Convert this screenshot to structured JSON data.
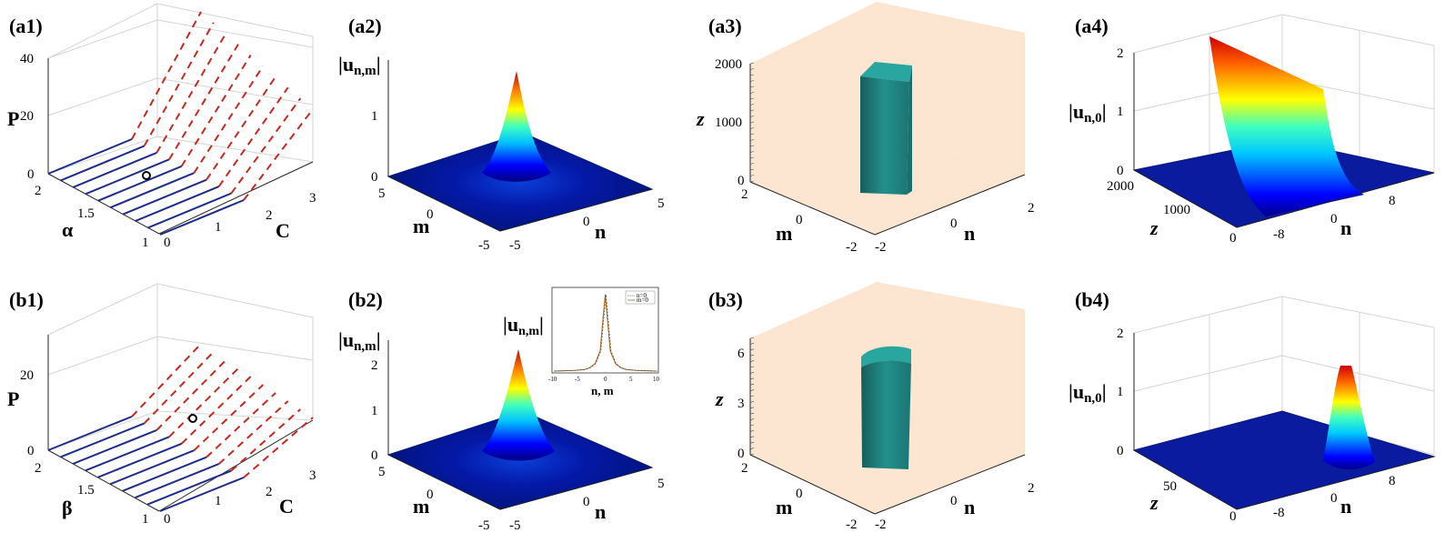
{
  "chart_data": [
    {
      "panel": "(a1)",
      "type": "line-3d",
      "zlabel": "P",
      "ylabel": "α",
      "xlabel": "C",
      "z_ticks": [
        "0",
        "20",
        "40"
      ],
      "y_ticks": [
        "1",
        "1.5",
        "2"
      ],
      "x_ticks": [
        "0",
        "1",
        "2",
        "3"
      ],
      "series": [
        {
          "style": "solid",
          "color": "#1f2d8a"
        },
        {
          "style": "dashed",
          "color": "#c8281e"
        }
      ],
      "marker": {
        "C": 0.8,
        "alpha": 1.55
      }
    },
    {
      "panel": "(a2)",
      "type": "surface-3d",
      "zlabel": "|u_{n,m}|",
      "ylabel": "m",
      "xlabel": "n",
      "z_ticks": [
        "0",
        "1"
      ],
      "y_ticks": [
        "5",
        "0",
        "-5"
      ],
      "x_ticks": [
        "-5",
        "0",
        "5"
      ],
      "peak": 1.8
    },
    {
      "panel": "(a3)",
      "type": "isosurface-3d",
      "zlabel": "z",
      "ylabel": "m",
      "xlabel": "n",
      "z_ticks": [
        "0",
        "1000",
        "2000"
      ],
      "y_ticks": [
        "2",
        "0",
        "-2"
      ],
      "x_ticks": [
        "-2",
        "0",
        "2"
      ],
      "colors": {
        "wall": "#fce6d1",
        "body": "#1f8a88"
      }
    },
    {
      "panel": "(a4)",
      "type": "surface-3d",
      "zlabel": "|u_{n,0}|",
      "ylabel": "z",
      "xlabel": "n",
      "z_ticks": [
        "0",
        "1",
        "2"
      ],
      "y_ticks": [
        "0",
        "1000",
        "2000"
      ],
      "x_ticks": [
        "-8",
        "0",
        "8"
      ],
      "peak": 2.1
    },
    {
      "panel": "(b1)",
      "type": "line-3d",
      "zlabel": "P",
      "ylabel": "β",
      "xlabel": "C",
      "z_ticks": [
        "0",
        "20"
      ],
      "y_ticks": [
        "1",
        "1.5",
        "2"
      ],
      "x_ticks": [
        "0",
        "1",
        "2",
        "3"
      ],
      "series": [
        {
          "style": "solid",
          "color": "#1f2d8a"
        },
        {
          "style": "dashed",
          "color": "#c8281e"
        }
      ],
      "marker": {
        "C": 1.4,
        "beta": 1.6
      }
    },
    {
      "panel": "(b2)",
      "type": "surface-3d",
      "zlabel": "|u_{n,m}|",
      "ylabel": "m",
      "xlabel": "n",
      "z_ticks": [
        "0",
        "1",
        "2"
      ],
      "y_ticks": [
        "5",
        "0",
        "-5"
      ],
      "x_ticks": [
        "-5",
        "0",
        "5"
      ],
      "peak": 2.3,
      "inset": {
        "type": "line",
        "ylabel": "|u_{n,m}|",
        "xlabel": "n, m",
        "x_ticks": [
          "-10",
          "-5",
          "0",
          "5",
          "10"
        ],
        "legend": [
          "n=0",
          "m=0"
        ],
        "x": [
          -10,
          -8,
          -6,
          -4,
          -3,
          -2,
          -1,
          0,
          1,
          2,
          3,
          4,
          6,
          8,
          10
        ],
        "y": [
          0.0,
          0.01,
          0.02,
          0.05,
          0.1,
          0.22,
          0.6,
          2.3,
          0.6,
          0.22,
          0.1,
          0.05,
          0.02,
          0.01,
          0.0
        ]
      }
    },
    {
      "panel": "(b3)",
      "type": "isosurface-3d",
      "zlabel": "z",
      "ylabel": "m",
      "xlabel": "n",
      "z_ticks": [
        "0",
        "3",
        "6"
      ],
      "y_ticks": [
        "2",
        "0",
        "-2"
      ],
      "x_ticks": [
        "-2",
        "0",
        "2"
      ],
      "colors": {
        "wall": "#fce6d1",
        "body": "#1f8a88"
      }
    },
    {
      "panel": "(b4)",
      "type": "surface-3d",
      "zlabel": "|u_{n,0}|",
      "ylabel": "z",
      "xlabel": "n",
      "z_ticks": [
        "0",
        "1",
        "2"
      ],
      "y_ticks": [
        "0",
        "50"
      ],
      "x_ticks": [
        "-8",
        "0",
        "8"
      ],
      "peak": 1.6
    }
  ],
  "labels": {
    "a1": "(a1)",
    "a2": "(a2)",
    "a3": "(a3)",
    "a4": "(a4)",
    "b1": "(b1)",
    "b2": "(b2)",
    "b3": "(b3)",
    "b4": "(b4)"
  }
}
